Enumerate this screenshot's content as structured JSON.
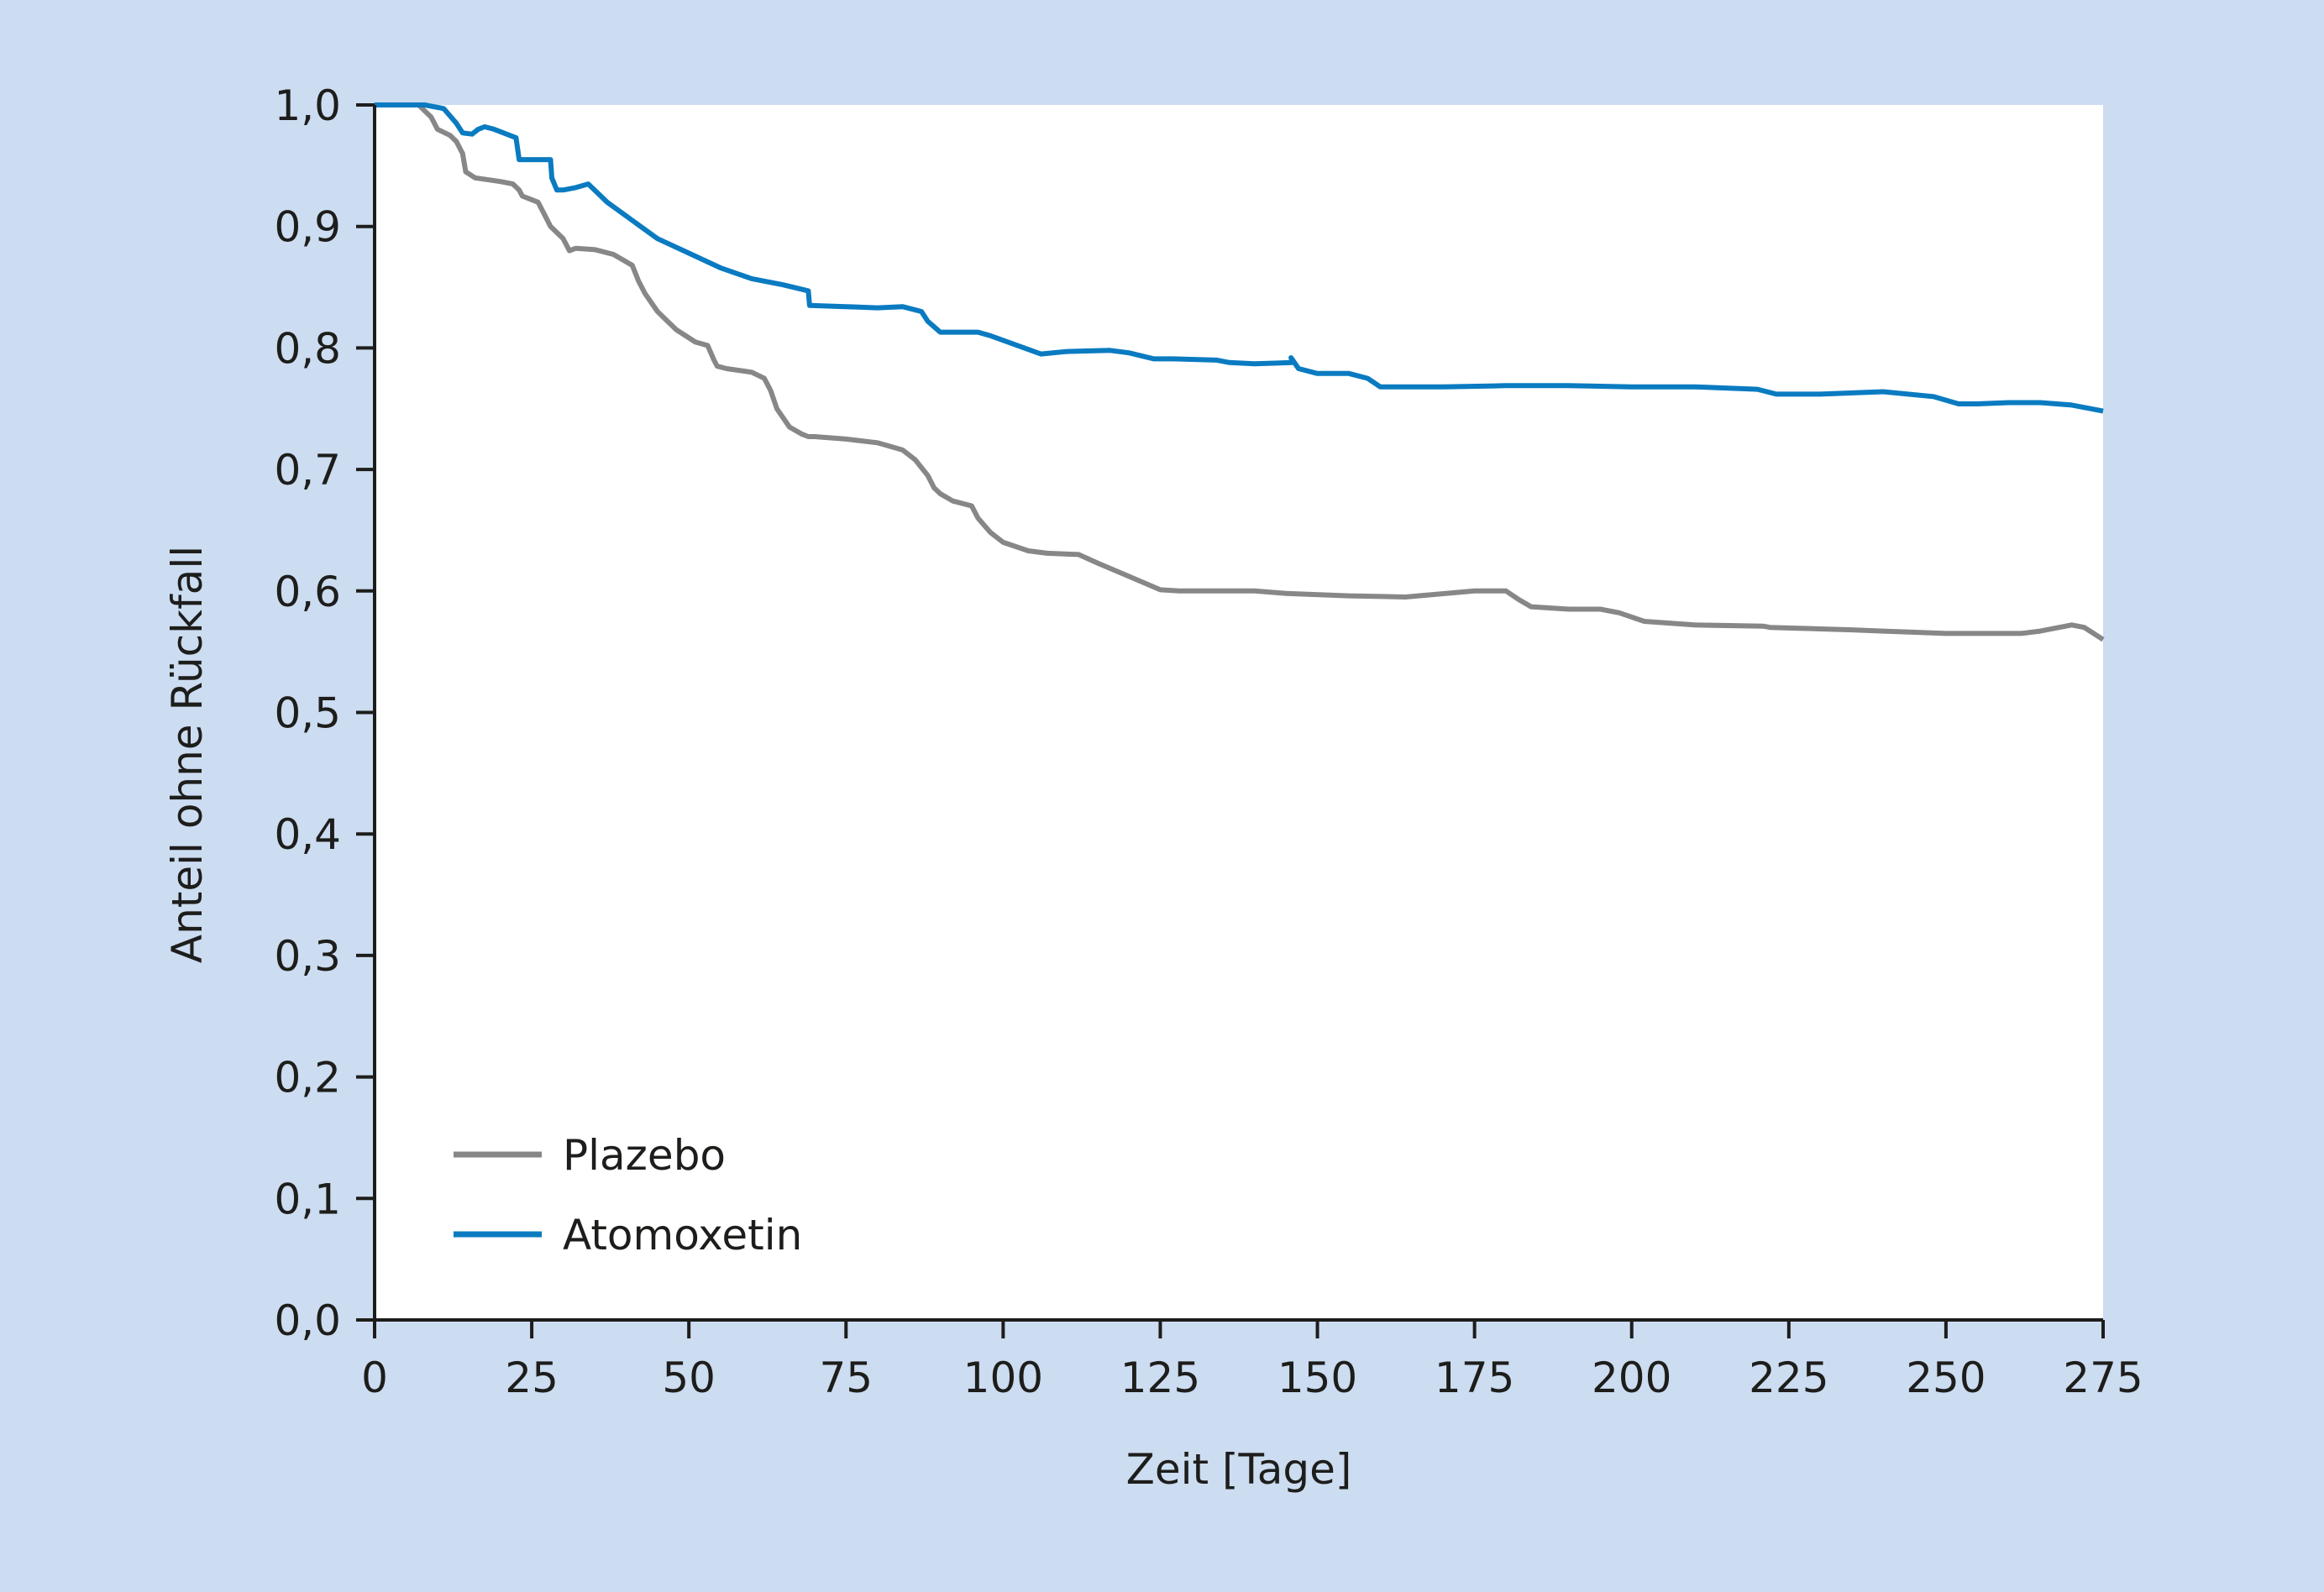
{
  "chart_data": {
    "type": "line",
    "xlabel": "Zeit [Tage]",
    "ylabel": "Anteil ohne Rückfall",
    "xlim": [
      0,
      275
    ],
    "ylim": [
      0,
      1
    ],
    "x_ticks": [
      "0",
      "25",
      "50",
      "75",
      "100",
      "125",
      "150",
      "175",
      "200",
      "225",
      "250",
      "275"
    ],
    "y_ticks": [
      "0,0",
      "0,1",
      "0,2",
      "0,3",
      "0,4",
      "0,5",
      "0,6",
      "0,7",
      "0,8",
      "0,9",
      "1,0"
    ],
    "grid": false,
    "legend_position": "bottom-left",
    "background_color": "#ccdcf1",
    "plot_background_color": "#ffffff",
    "series": [
      {
        "name": "Plazebo",
        "color": "#878787",
        "x": [
          0,
          7,
          9,
          10,
          12,
          13,
          14,
          14.5,
          16,
          20,
          22,
          23,
          23.5,
          26,
          27,
          28,
          29,
          30,
          31,
          32,
          35,
          38,
          41,
          42,
          43,
          45,
          48,
          51,
          53,
          54,
          54.5,
          56,
          60,
          62,
          63,
          64,
          66,
          68,
          69,
          70,
          75,
          80,
          84,
          86,
          88,
          89,
          90,
          92,
          95,
          96,
          98,
          100,
          104,
          107,
          112,
          115,
          120,
          125,
          128,
          135,
          140,
          145,
          155,
          164,
          175,
          180,
          182,
          184,
          190,
          195,
          198,
          202,
          210,
          221,
          222,
          235,
          240,
          250,
          262,
          265,
          270,
          272,
          275
        ],
        "y": [
          1.0,
          1.0,
          0.99,
          0.98,
          0.975,
          0.97,
          0.96,
          0.945,
          0.94,
          0.937,
          0.935,
          0.93,
          0.925,
          0.92,
          0.91,
          0.9,
          0.895,
          0.89,
          0.88,
          0.882,
          0.881,
          0.877,
          0.868,
          0.855,
          0.845,
          0.83,
          0.815,
          0.805,
          0.802,
          0.79,
          0.785,
          0.783,
          0.78,
          0.775,
          0.765,
          0.75,
          0.735,
          0.729,
          0.727,
          0.727,
          0.725,
          0.722,
          0.716,
          0.708,
          0.695,
          0.685,
          0.68,
          0.674,
          0.67,
          0.66,
          0.648,
          0.64,
          0.633,
          0.631,
          0.63,
          0.623,
          0.612,
          0.601,
          0.6,
          0.6,
          0.6,
          0.598,
          0.596,
          0.595,
          0.6,
          0.6,
          0.593,
          0.587,
          0.585,
          0.585,
          0.582,
          0.575,
          0.572,
          0.571,
          0.57,
          0.568,
          0.567,
          0.565,
          0.565,
          0.567,
          0.572,
          0.57,
          0.56
        ]
      },
      {
        "name": "Atomoxetin",
        "color": "#0a7bc1",
        "x": [
          0,
          8,
          11,
          13,
          14,
          15.5,
          16.5,
          17.5,
          19,
          22.5,
          23,
          24.5,
          26,
          28,
          28.2,
          29,
          30,
          32,
          34,
          37,
          41,
          45,
          50,
          55,
          60,
          65,
          69,
          69.2,
          75,
          80,
          84,
          87,
          88,
          90,
          96,
          98,
          106,
          110,
          117,
          120,
          124,
          127,
          134,
          136,
          140,
          146,
          145.8,
          147,
          150,
          155,
          158,
          160,
          170,
          180,
          190,
          200,
          210,
          220,
          223,
          230,
          240,
          248,
          252,
          255,
          260,
          265,
          270,
          275
        ],
        "y": [
          1.0,
          1.0,
          0.997,
          0.985,
          0.977,
          0.976,
          0.98,
          0.982,
          0.98,
          0.973,
          0.955,
          0.955,
          0.955,
          0.955,
          0.94,
          0.93,
          0.93,
          0.932,
          0.935,
          0.92,
          0.905,
          0.89,
          0.878,
          0.866,
          0.857,
          0.852,
          0.847,
          0.835,
          0.834,
          0.833,
          0.834,
          0.83,
          0.822,
          0.813,
          0.813,
          0.81,
          0.795,
          0.797,
          0.798,
          0.796,
          0.791,
          0.791,
          0.79,
          0.788,
          0.787,
          0.788,
          0.792,
          0.783,
          0.779,
          0.779,
          0.775,
          0.768,
          0.768,
          0.769,
          0.769,
          0.768,
          0.768,
          0.766,
          0.762,
          0.762,
          0.764,
          0.76,
          0.754,
          0.754,
          0.755,
          0.755,
          0.753,
          0.748
        ]
      }
    ]
  }
}
